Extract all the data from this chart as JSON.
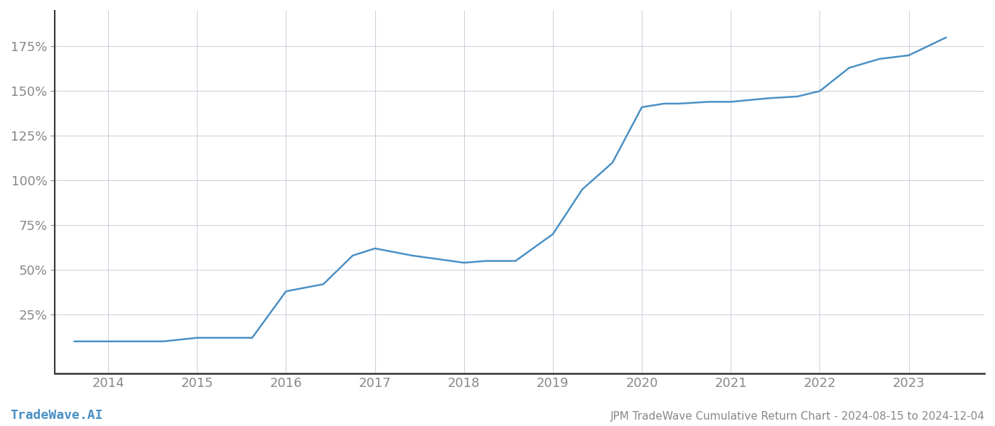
{
  "title": "JPM TradeWave Cumulative Return Chart - 2024-08-15 to 2024-12-04",
  "watermark": "TradeWave.AI",
  "line_color": "#4a90c4",
  "background_color": "#ffffff",
  "grid_color": "#c8d0d8",
  "x_years": [
    2014,
    2015,
    2016,
    2017,
    2018,
    2019,
    2020,
    2021,
    2022,
    2023
  ],
  "x_values": [
    2013.62,
    2014.0,
    2014.62,
    2015.0,
    2015.25,
    2015.62,
    2016.0,
    2016.42,
    2016.75,
    2017.0,
    2017.42,
    2018.0,
    2018.25,
    2018.58,
    2019.0,
    2019.33,
    2019.67,
    2020.0,
    2020.25,
    2020.42,
    2020.75,
    2021.0,
    2021.42,
    2021.75,
    2022.0,
    2022.33,
    2022.67,
    2023.0,
    2023.42
  ],
  "y_values": [
    10,
    10,
    10,
    12,
    12,
    12,
    38,
    42,
    58,
    62,
    58,
    54,
    55,
    55,
    70,
    95,
    110,
    141,
    143,
    143,
    144,
    144,
    146,
    147,
    150,
    163,
    168,
    170,
    180
  ],
  "yticks": [
    25,
    50,
    75,
    100,
    125,
    150,
    175
  ],
  "ylim": [
    -8,
    195
  ],
  "xlim": [
    2013.4,
    2023.85
  ],
  "title_fontsize": 11,
  "tick_fontsize": 13,
  "watermark_fontsize": 13,
  "line_width": 1.8,
  "tick_label_color": "#888888",
  "spine_color": "#333333",
  "watermark_color": "#4a90c4"
}
